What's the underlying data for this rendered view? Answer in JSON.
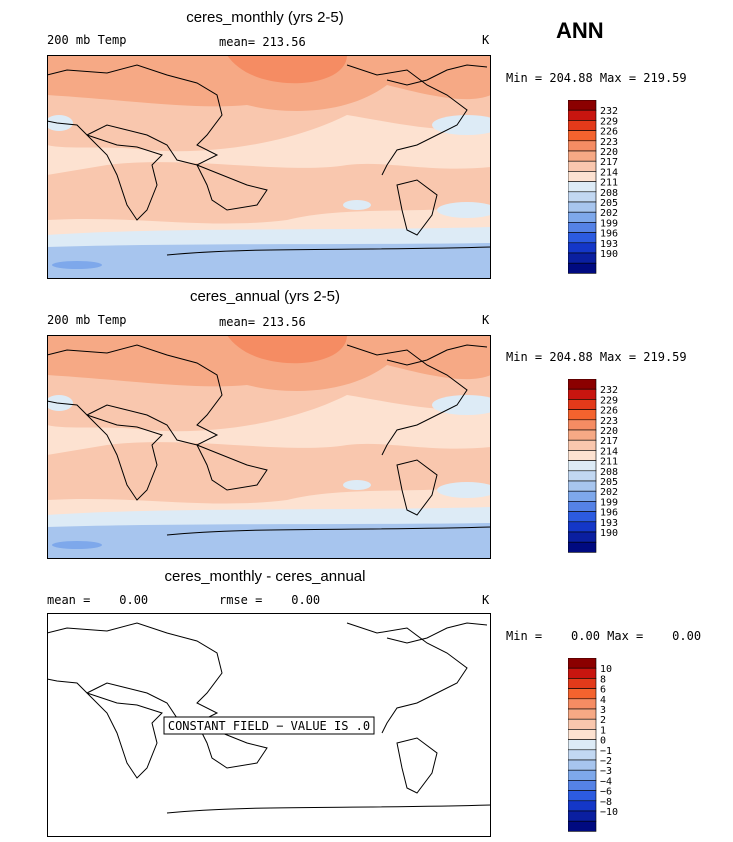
{
  "season": "ANN",
  "colors": {
    "warm": [
      "#8b0000",
      "#c8150f",
      "#e33a1a",
      "#f4632e",
      "#f58c63",
      "#f6a985",
      "#f9c7ae",
      "#fde2d1"
    ],
    "neutral": "#ddebf6",
    "cool": [
      "#c2d8f2",
      "#a7c5ee",
      "#7ea8eb",
      "#5582e6",
      "#2c5be0",
      "#1437c8",
      "#0a1fa0",
      "#000a80"
    ],
    "land": "#000000"
  },
  "panels": [
    {
      "title": "ceres_monthly (yrs 2-5)",
      "left_label": "200 mb Temp",
      "center_label": "mean= 213.56",
      "right_label": "K",
      "min_max": "Min = 204.88 Max = 219.59",
      "colorbar_levels": [
        "232",
        "229",
        "226",
        "223",
        "220",
        "217",
        "214",
        "211",
        "208",
        "205",
        "202",
        "199",
        "196",
        "193",
        "190"
      ],
      "constant_note": ""
    },
    {
      "title": "ceres_annual (yrs 2-5)",
      "left_label": "200 mb Temp",
      "center_label": "mean= 213.56",
      "right_label": "K",
      "min_max": "Min = 204.88 Max = 219.59",
      "colorbar_levels": [
        "232",
        "229",
        "226",
        "223",
        "220",
        "217",
        "214",
        "211",
        "208",
        "205",
        "202",
        "199",
        "196",
        "193",
        "190"
      ],
      "constant_note": ""
    },
    {
      "title": "ceres_monthly - ceres_annual",
      "left_label": "mean =    0.00",
      "center_label": "rmse =    0.00",
      "right_label": "K",
      "min_max": "Min =    0.00 Max =    0.00",
      "colorbar_levels": [
        "10",
        "8",
        "6",
        "4",
        "3",
        "2",
        "1",
        "0",
        "−1",
        "−2",
        "−3",
        "−4",
        "−6",
        "−8",
        "−10"
      ],
      "constant_note": "CONSTANT FIELD − VALUE IS .0"
    }
  ]
}
